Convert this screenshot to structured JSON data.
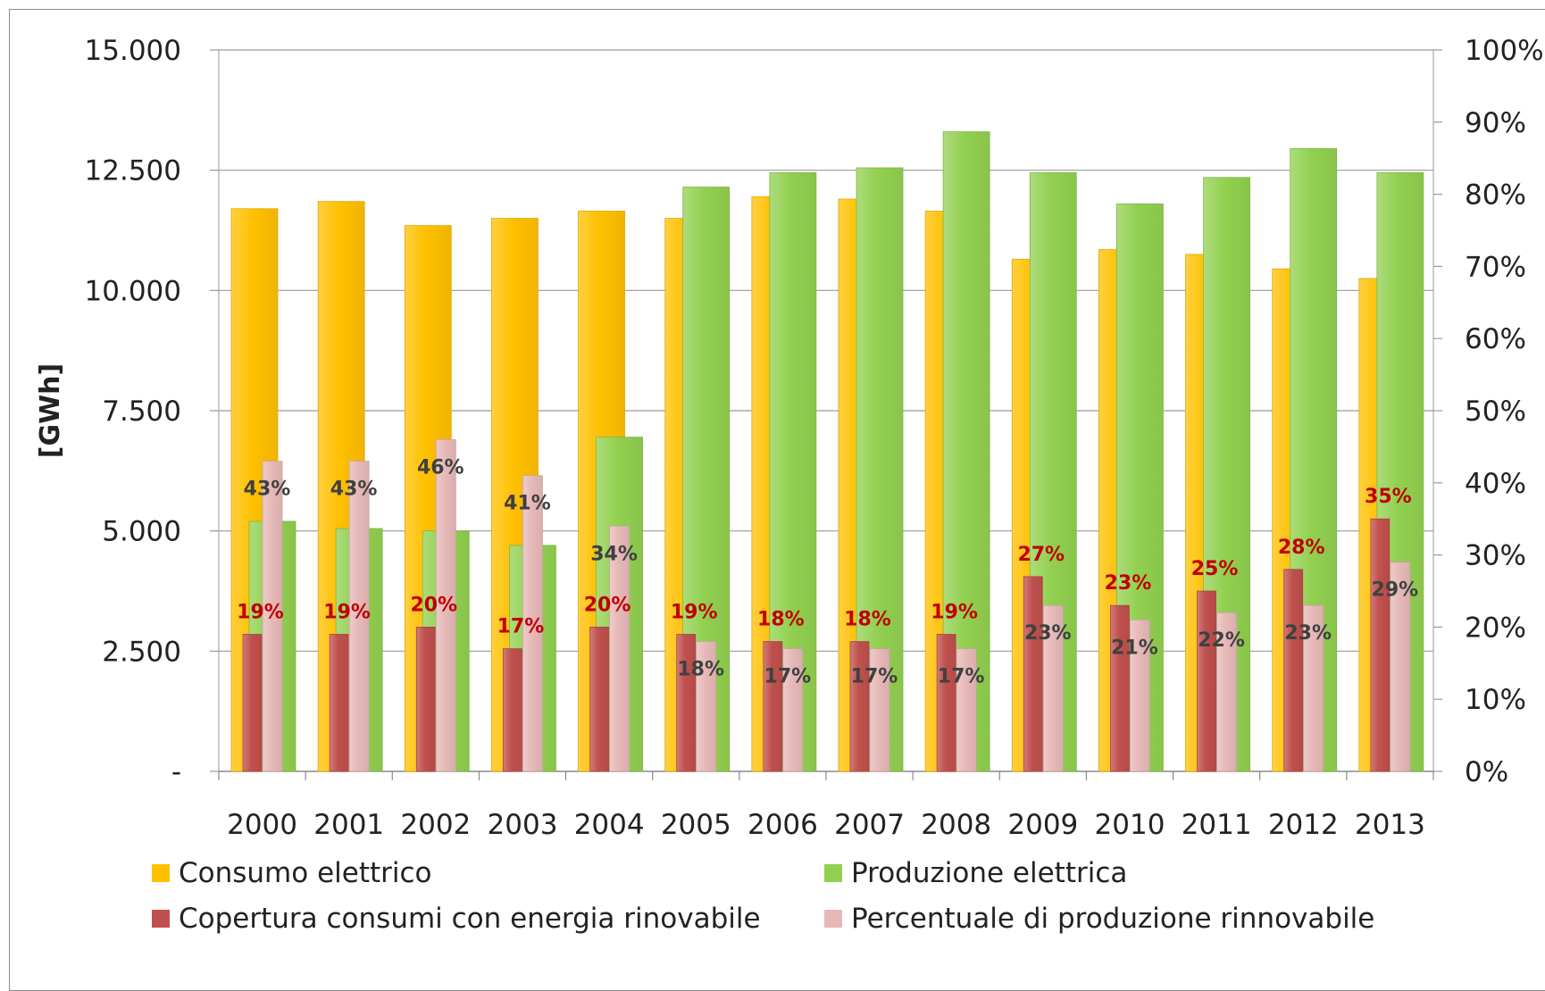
{
  "chart_data": {
    "type": "bar",
    "ylabel": "[GWh]",
    "ylim": [
      0,
      15000
    ],
    "y_ticks": [
      "-",
      "2.500",
      "5.000",
      "7.500",
      "10.000",
      "12.500",
      "15.000"
    ],
    "y2lim": [
      0,
      100
    ],
    "y2_ticks": [
      "0%",
      "10%",
      "20%",
      "30%",
      "40%",
      "50%",
      "60%",
      "70%",
      "80%",
      "90%",
      "100%"
    ],
    "grid": true,
    "legend_position": "bottom",
    "categories": [
      "2000",
      "2001",
      "2002",
      "2003",
      "2004",
      "2005",
      "2006",
      "2007",
      "2008",
      "2009",
      "2010",
      "2011",
      "2012",
      "2013"
    ],
    "series": [
      {
        "name": "Consumo elettrico",
        "axis": "left",
        "color": "#FFC000",
        "values": [
          11700,
          11850,
          11350,
          11500,
          11650,
          11500,
          11950,
          11900,
          11650,
          10650,
          10850,
          10750,
          10450,
          10250
        ]
      },
      {
        "name": "Produzione elettrica",
        "axis": "left",
        "color": "#92D050",
        "values": [
          5200,
          5050,
          5000,
          4700,
          6950,
          12150,
          12450,
          12550,
          13300,
          12450,
          11800,
          12350,
          12950,
          12450
        ]
      },
      {
        "name": "Copertura consumi con energia rinovabile",
        "axis": "right",
        "color": "#C0504D",
        "label_color": "#C00000",
        "values": [
          19,
          19,
          20,
          17,
          20,
          19,
          18,
          18,
          19,
          27,
          23,
          25,
          28,
          35
        ],
        "labels": [
          "19%",
          "19%",
          "20%",
          "17%",
          "20%",
          "19%",
          "18%",
          "18%",
          "19%",
          "27%",
          "23%",
          "25%",
          "28%",
          "35%"
        ]
      },
      {
        "name": "Percentuale di produzione rinnovabile",
        "axis": "right",
        "color": "#E6B9B8",
        "label_color": "#404040",
        "values": [
          43,
          43,
          46,
          41,
          34,
          18,
          17,
          17,
          17,
          23,
          21,
          22,
          23,
          29
        ],
        "labels": [
          "43%",
          "43%",
          "46%",
          "41%",
          "34%",
          "18%",
          "17%",
          "17%",
          "17%",
          "23%",
          "21%",
          "22%",
          "23%",
          "29%"
        ]
      }
    ]
  }
}
